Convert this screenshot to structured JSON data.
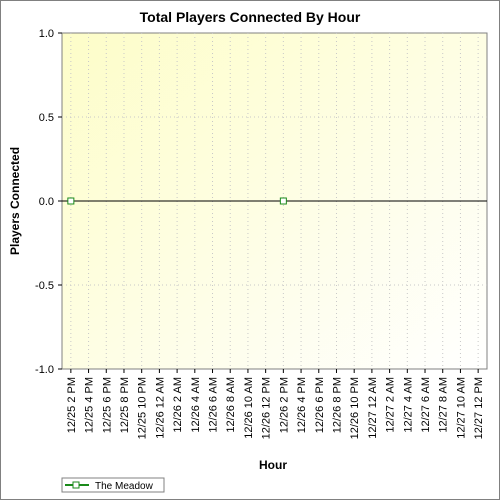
{
  "chart_data": {
    "type": "line",
    "title": "Total Players Connected By Hour",
    "xlabel": "Hour",
    "ylabel": "Players Connected",
    "ylim": [
      -1.0,
      1.0
    ],
    "y_ticks": [
      "1.0",
      "0.5",
      "0.0",
      "-0.5",
      "-1.0"
    ],
    "categories": [
      "12/25 2 PM",
      "12/25 4 PM",
      "12/25 6 PM",
      "12/25 8 PM",
      "12/25 10 PM",
      "12/26 12 AM",
      "12/26 2 AM",
      "12/26 4 AM",
      "12/26 6 AM",
      "12/26 8 AM",
      "12/26 10 AM",
      "12/26 12 PM",
      "12/26 2 PM",
      "12/26 4 PM",
      "12/26 6 PM",
      "12/26 8 PM",
      "12/26 10 PM",
      "12/27 12 AM",
      "12/27 2 AM",
      "12/27 4 AM",
      "12/27 6 AM",
      "12/27 8 AM",
      "12/27 10 AM",
      "12/27 12 PM"
    ],
    "series": [
      {
        "name": "The Meadow",
        "color": "#1a8a1a",
        "line_color": "#000000",
        "x": [
          "12/25 2 PM",
          "12/26 2 PM"
        ],
        "values": [
          0,
          0
        ]
      }
    ],
    "grid": true,
    "legend_position": "bottom-left"
  }
}
